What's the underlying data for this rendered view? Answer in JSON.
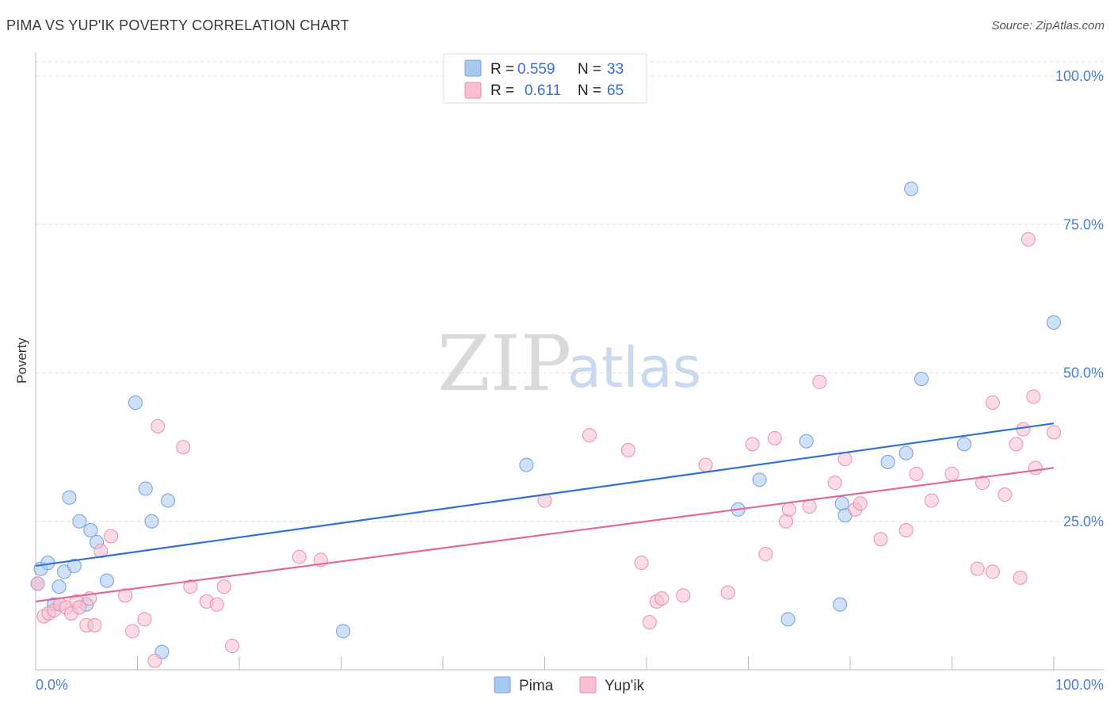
{
  "header": {
    "title": "PIMA VS YUP'IK POVERTY CORRELATION CHART",
    "source": "Source: ZipAtlas.com"
  },
  "watermark": {
    "zip": "ZIP",
    "atlas": "atlas"
  },
  "legend": {
    "rows": [
      {
        "r_label": "R =",
        "r_value": "0.559",
        "n_label": "N =",
        "n_value": "33",
        "color": "#a9c8f0",
        "stroke": "#6f9fe0"
      },
      {
        "r_label": "R =",
        "r_value": "0.611",
        "n_label": "N =",
        "n_value": "65",
        "color": "#f7bfd0",
        "stroke": "#ea8faa"
      }
    ]
  },
  "chart_data": {
    "type": "scatter",
    "title": "PIMA VS YUP'IK POVERTY CORRELATION CHART",
    "xlabel": "",
    "ylabel": "Poverty",
    "xlim": [
      0,
      100
    ],
    "ylim": [
      0,
      100
    ],
    "x_tick_labels": [
      "0.0%",
      "100.0%"
    ],
    "y_tick_labels": [
      "25.0%",
      "50.0%",
      "75.0%",
      "100.0%"
    ],
    "y_ticks": [
      25,
      50,
      75,
      100
    ],
    "grid": true,
    "legend_position": "top-center",
    "series": [
      {
        "name": "Pima",
        "color": "#a9c8f0",
        "stroke": "#6f9fe0",
        "trend_color": "#2f72d6",
        "trend": [
          [
            0,
            17.5
          ],
          [
            100,
            41.5
          ]
        ],
        "points": [
          [
            0.2,
            14.5
          ],
          [
            0.5,
            17.0
          ],
          [
            1.2,
            18.0
          ],
          [
            1.8,
            11.0
          ],
          [
            2.3,
            14.0
          ],
          [
            2.8,
            16.5
          ],
          [
            3.3,
            29.0
          ],
          [
            3.8,
            17.5
          ],
          [
            4.3,
            25.0
          ],
          [
            5.0,
            11.0
          ],
          [
            5.4,
            23.5
          ],
          [
            6.0,
            21.5
          ],
          [
            7.0,
            15.0
          ],
          [
            9.8,
            45.0
          ],
          [
            10.8,
            30.5
          ],
          [
            11.4,
            25.0
          ],
          [
            12.4,
            3.0
          ],
          [
            13.0,
            28.5
          ],
          [
            30.2,
            6.5
          ],
          [
            48.2,
            34.5
          ],
          [
            69.0,
            27.0
          ],
          [
            71.1,
            32.0
          ],
          [
            73.9,
            8.5
          ],
          [
            75.7,
            38.5
          ],
          [
            79.0,
            11.0
          ],
          [
            79.2,
            28.0
          ],
          [
            79.5,
            26.0
          ],
          [
            83.7,
            35.0
          ],
          [
            85.5,
            36.5
          ],
          [
            86.0,
            81.0
          ],
          [
            87.0,
            49.0
          ],
          [
            91.2,
            38.0
          ],
          [
            100.0,
            58.5
          ]
        ]
      },
      {
        "name": "Yup'ik",
        "color": "#f7bfd0",
        "stroke": "#ea8faa",
        "trend_color": "#e26a94",
        "trend": [
          [
            0,
            11.5
          ],
          [
            100,
            34.0
          ]
        ],
        "points": [
          [
            0.2,
            14.5
          ],
          [
            0.8,
            9.0
          ],
          [
            1.3,
            9.5
          ],
          [
            1.8,
            10.0
          ],
          [
            2.4,
            11.0
          ],
          [
            3.0,
            10.5
          ],
          [
            3.5,
            9.5
          ],
          [
            4.0,
            11.5
          ],
          [
            4.3,
            10.5
          ],
          [
            5.0,
            7.5
          ],
          [
            5.3,
            12.0
          ],
          [
            5.8,
            7.5
          ],
          [
            6.4,
            20.0
          ],
          [
            7.4,
            22.5
          ],
          [
            8.8,
            12.5
          ],
          [
            9.5,
            6.5
          ],
          [
            10.7,
            8.5
          ],
          [
            11.7,
            1.5
          ],
          [
            12.0,
            41.0
          ],
          [
            14.5,
            37.5
          ],
          [
            15.2,
            14.0
          ],
          [
            16.8,
            11.5
          ],
          [
            17.8,
            11.0
          ],
          [
            18.5,
            14.0
          ],
          [
            19.3,
            4.0
          ],
          [
            25.9,
            19.0
          ],
          [
            28.0,
            18.5
          ],
          [
            50.0,
            28.5
          ],
          [
            54.4,
            39.5
          ],
          [
            58.2,
            37.0
          ],
          [
            59.5,
            18.0
          ],
          [
            60.3,
            8.0
          ],
          [
            61.0,
            11.5
          ],
          [
            61.5,
            12.0
          ],
          [
            63.6,
            12.5
          ],
          [
            65.8,
            34.5
          ],
          [
            68.0,
            13.0
          ],
          [
            70.4,
            38.0
          ],
          [
            71.7,
            19.5
          ],
          [
            72.6,
            39.0
          ],
          [
            73.7,
            25.0
          ],
          [
            74.0,
            27.0
          ],
          [
            76.0,
            27.5
          ],
          [
            77.0,
            48.5
          ],
          [
            78.5,
            31.5
          ],
          [
            79.5,
            35.5
          ],
          [
            80.5,
            27.0
          ],
          [
            81.0,
            28.0
          ],
          [
            83.0,
            22.0
          ],
          [
            85.5,
            23.5
          ],
          [
            86.5,
            33.0
          ],
          [
            88.0,
            28.5
          ],
          [
            90.0,
            33.0
          ],
          [
            92.5,
            17.0
          ],
          [
            93.0,
            31.5
          ],
          [
            94.0,
            16.5
          ],
          [
            94.0,
            45.0
          ],
          [
            95.2,
            29.5
          ],
          [
            96.3,
            38.0
          ],
          [
            96.7,
            15.5
          ],
          [
            97.0,
            40.5
          ],
          [
            97.5,
            72.5
          ],
          [
            98.0,
            46.0
          ],
          [
            98.2,
            34.0
          ],
          [
            100.0,
            40.0
          ]
        ]
      }
    ]
  }
}
